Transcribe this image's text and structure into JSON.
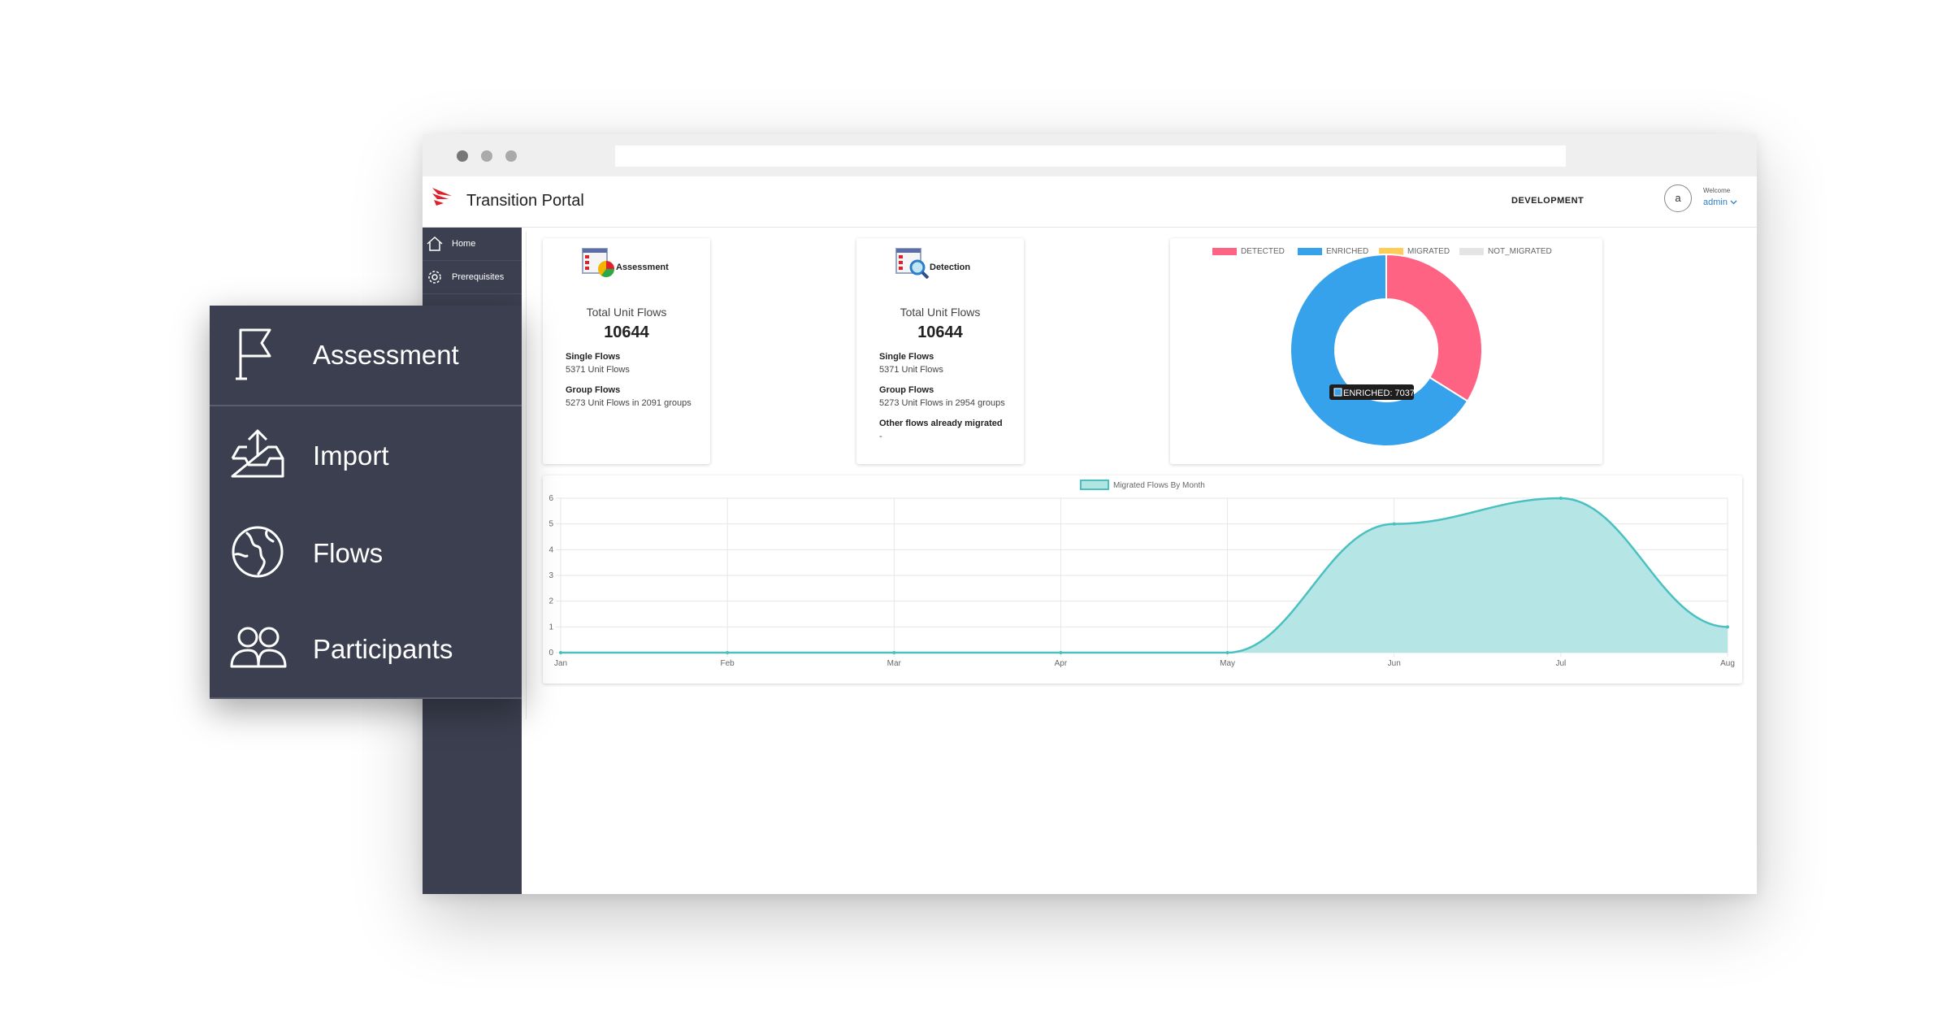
{
  "header": {
    "title": "Transition Portal",
    "environment": "DEVELOPMENT",
    "avatar_letter": "a",
    "welcome_label": "Welcome",
    "user": "admin"
  },
  "sidebar": {
    "items": [
      {
        "label": "Home",
        "icon": "home-icon"
      },
      {
        "label": "Prerequisites",
        "icon": "gear-icon"
      }
    ]
  },
  "cards": [
    {
      "name": "Assessment",
      "total_label": "Total Unit Flows",
      "total": "10644",
      "rows": [
        {
          "label": "Single Flows",
          "value": "5371 Unit Flows"
        },
        {
          "label": "Group Flows",
          "value": "5273 Unit Flows in 2091 groups"
        }
      ]
    },
    {
      "name": "Detection",
      "total_label": "Total Unit Flows",
      "total": "10644",
      "rows": [
        {
          "label": "Single Flows",
          "value": "5371 Unit Flows"
        },
        {
          "label": "Group Flows",
          "value": "5273 Unit Flows in 2954 groups"
        },
        {
          "label": "Other flows already migrated",
          "value": "-"
        }
      ]
    }
  ],
  "floating_menu": {
    "items": [
      {
        "label": "Assessment",
        "icon": "flag-icon"
      },
      {
        "label": "Import",
        "icon": "upload-tray-icon"
      },
      {
        "label": "Flows",
        "icon": "globe-icon"
      },
      {
        "label": "Participants",
        "icon": "users-icon"
      }
    ]
  },
  "chart_data": [
    {
      "type": "pie",
      "variant": "doughnut",
      "legend_position": "top",
      "categories": [
        "DETECTED",
        "ENRICHED",
        "MIGRATED",
        "NOT_MIGRATED"
      ],
      "values": [
        3607,
        7037,
        0,
        0
      ],
      "colors": [
        "#ff6384",
        "#36a2eb",
        "#ffcd56",
        "#e4e4e4"
      ],
      "tooltip": "ENRICHED: 7037"
    },
    {
      "type": "area",
      "legend_position": "top",
      "series": [
        {
          "name": "Migrated Flows By Month",
          "values": [
            0,
            0,
            0,
            0,
            0,
            5,
            6,
            1
          ]
        }
      ],
      "categories": [
        "Jan",
        "Feb",
        "Mar",
        "Apr",
        "May",
        "Jun",
        "Jul",
        "Aug"
      ],
      "ylim": [
        0,
        6
      ],
      "yticks": [
        "0",
        "1",
        "2",
        "3",
        "4",
        "5",
        "6"
      ],
      "grid": true,
      "line_color": "#4bc0c0",
      "fill_color": "#b1e5e4"
    }
  ]
}
